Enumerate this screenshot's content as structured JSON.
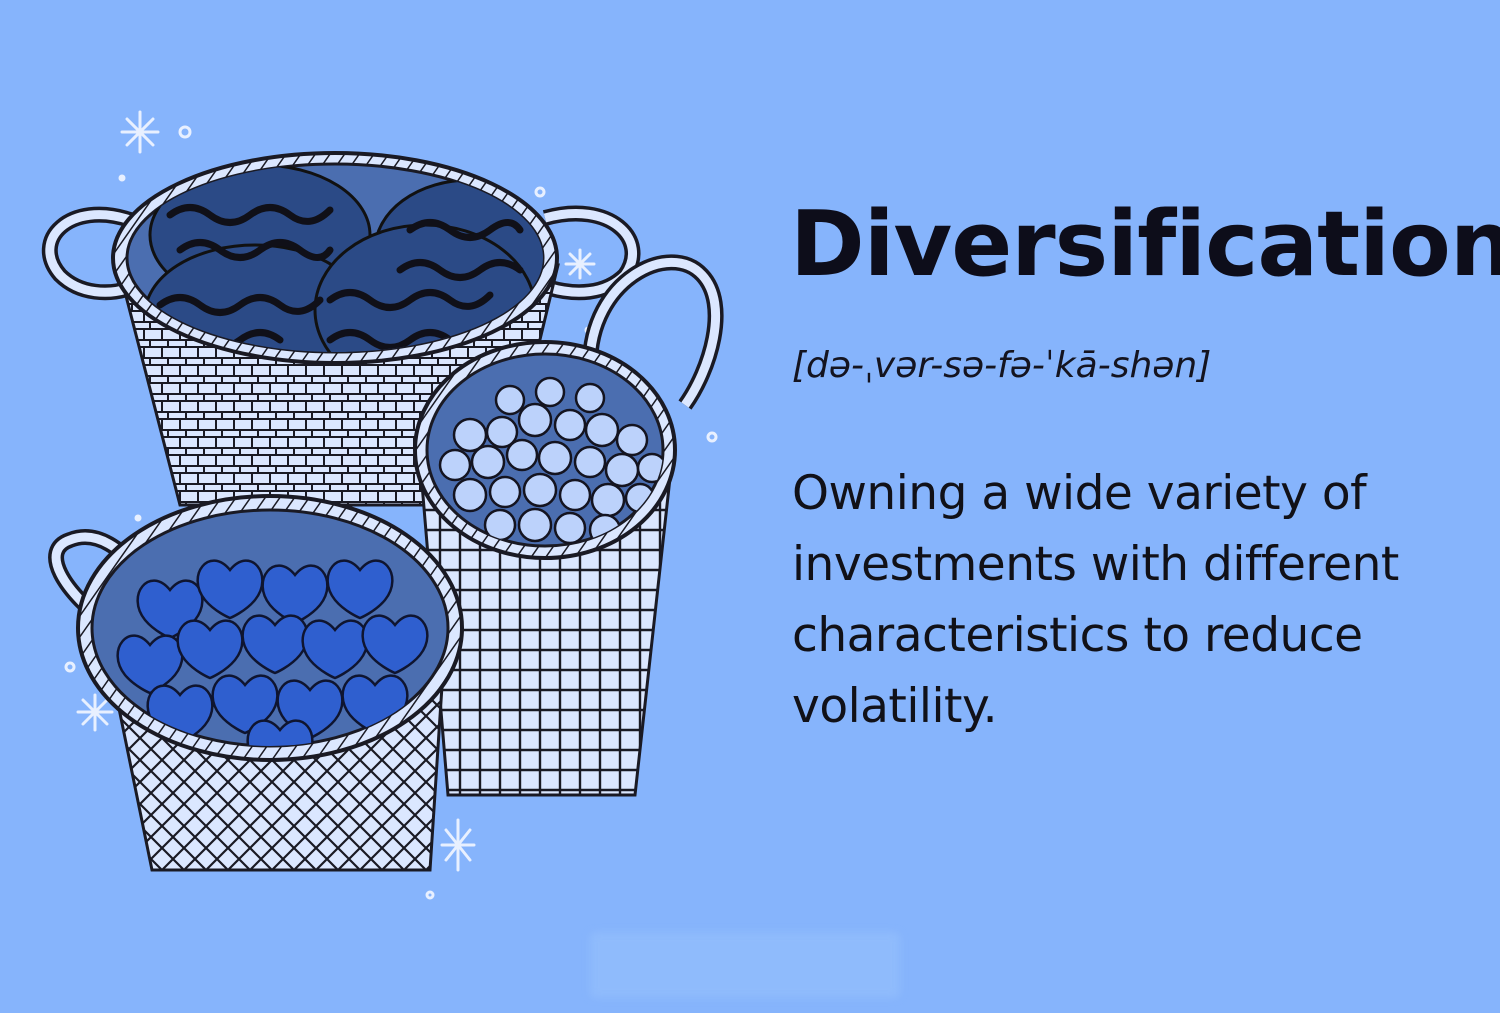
{
  "term": {
    "title": "Diversification",
    "pronunciation": "[də-ˌvər-sə-fə-ˈkā-shən]",
    "definition": "Owning a wide variety of investments with different characteristics to reduce volatility."
  },
  "illustration": {
    "icon": "three-baskets-illustration",
    "colors": {
      "background": "#86b4fc",
      "basket": "#dbe7ff",
      "outline": "#15151f",
      "watermelon": "#2b4a86",
      "blueberry": "#bcd2fb",
      "cherry": "#2f5fcf"
    }
  }
}
